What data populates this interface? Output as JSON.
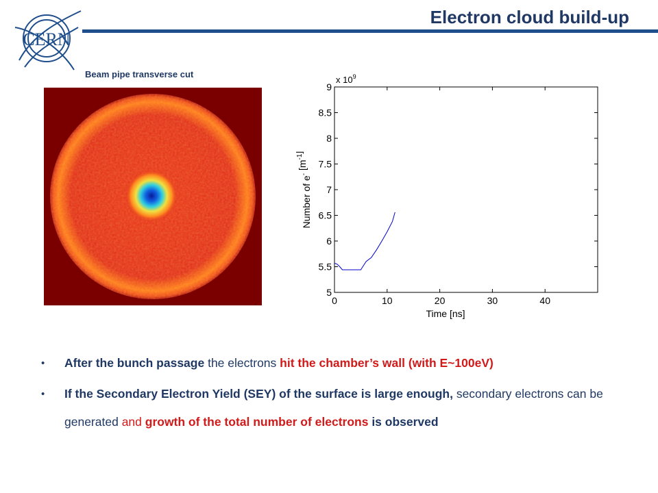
{
  "header": {
    "title": "Electron cloud build-up",
    "logo_text": "CERN",
    "rule_color": "#1f4e8c"
  },
  "figure_left": {
    "caption": "Beam pipe transverse cut"
  },
  "chart_data": {
    "type": "line",
    "xlabel": "Time [ns]",
    "ylabel": "Number of e- [m-1]",
    "multiplier": "x 10^9",
    "xlim": [
      0,
      50
    ],
    "ylim": [
      5,
      9
    ],
    "xticks": [
      0,
      10,
      20,
      30,
      40
    ],
    "yticks": [
      5,
      5.5,
      6,
      6.5,
      7,
      7.5,
      8,
      8.5,
      9
    ],
    "series": [
      {
        "color": "#0000cc",
        "x": [
          0,
          0.5,
          1,
          1.5,
          2,
          3,
          4,
          5,
          5.5,
          6,
          7,
          8,
          9,
          10,
          11,
          11.5
        ],
        "y": [
          5.57,
          5.55,
          5.5,
          5.44,
          5.44,
          5.44,
          5.44,
          5.44,
          5.52,
          5.6,
          5.68,
          5.83,
          6.0,
          6.18,
          6.38,
          6.56
        ]
      }
    ]
  },
  "bullets": [
    {
      "parts": [
        {
          "text": "After the bunch passage",
          "style": "b blue"
        },
        {
          "text": " the electrons ",
          "style": "blue"
        },
        {
          "text": "hit the chamber’s wall (with E~100eV)",
          "style": "b red"
        }
      ]
    },
    {
      "parts": [
        {
          "text": "If the Secondary Electron Yield (SEY) of the surface is large enough,",
          "style": "b blue"
        },
        {
          "text": " secondary electrons can be generated ",
          "style": "blue"
        },
        {
          "text": "and ",
          "style": "red"
        },
        {
          "text": "growth of the total number of electrons",
          "style": "b red"
        },
        {
          "text": " is observed",
          "style": "b blue"
        }
      ]
    }
  ]
}
